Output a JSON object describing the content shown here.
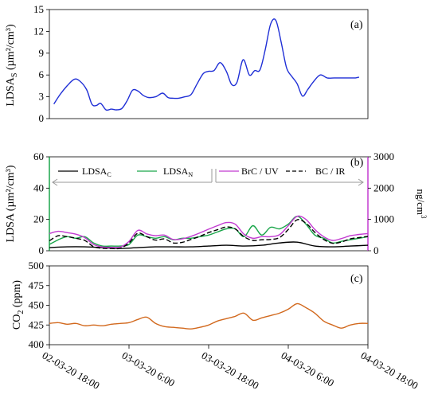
{
  "chart_data": [
    {
      "type": "line",
      "panel_label": "(a)",
      "ylabel_main": "LDSA",
      "ylabel_sub": "S",
      "ylabel_unit": " (µm²/cm³)",
      "ylim": [
        0,
        15
      ],
      "yticks": [
        "0",
        "3",
        "6",
        "9",
        "12",
        "15"
      ],
      "ytick_values": [
        0,
        3,
        6,
        9,
        12,
        15
      ],
      "x_range": [
        0,
        36
      ],
      "series": [
        {
          "color": "#1f2fd6",
          "x": [
            0.5,
            1.2,
            2.0,
            2.8,
            3.4,
            4.2,
            4.8,
            5.3,
            5.8,
            6.4,
            7.0,
            7.6,
            8.2,
            8.8,
            9.4,
            10.0,
            10.6,
            11.2,
            12.0,
            12.8,
            13.4,
            14.0,
            14.6,
            15.3,
            16.0,
            16.7,
            17.4,
            18.0,
            18.6,
            19.3,
            20.0,
            20.6,
            21.2,
            21.9,
            22.6,
            23.2,
            23.8,
            24.4,
            25.0,
            25.6,
            26.2,
            26.8,
            27.4,
            28.0,
            28.6,
            29.2,
            29.8,
            30.6,
            31.4,
            32.2,
            33.0,
            33.8,
            34.6,
            35.0
          ],
          "y": [
            2.0,
            3.3,
            4.5,
            5.4,
            5.2,
            4.0,
            2.0,
            1.8,
            2.1,
            1.2,
            1.3,
            1.2,
            1.4,
            2.5,
            3.9,
            3.8,
            3.2,
            2.9,
            3.0,
            3.5,
            2.9,
            2.8,
            2.8,
            3.0,
            3.3,
            4.8,
            6.2,
            6.5,
            6.6,
            7.7,
            6.5,
            4.7,
            5.0,
            8.1,
            6.0,
            6.6,
            6.7,
            9.5,
            13.0,
            13.5,
            10.5,
            7.0,
            5.8,
            4.8,
            3.1,
            4.0,
            5.0,
            6.0,
            5.6,
            5.6,
            5.6,
            5.6,
            5.6,
            5.7
          ]
        }
      ]
    },
    {
      "type": "line",
      "panel_label": "(b)",
      "ylabel_main": "LDSA",
      "ylabel_unit": " (µm²/cm³)",
      "ylim": [
        0,
        60
      ],
      "yticks": [
        "0",
        "20",
        "40",
        "60"
      ],
      "ytick_values": [
        0,
        20,
        40,
        60
      ],
      "y2lim": [
        0,
        3000
      ],
      "y2ticks": [
        "0",
        "1000",
        "2000",
        "3000"
      ],
      "y2tick_values": [
        0,
        1000,
        2000,
        3000
      ],
      "y2label_main": "ng/cm",
      "y2label_sup": "3",
      "x_range": [
        0,
        36
      ],
      "legend": [
        {
          "main": "LDSA",
          "sub": "C",
          "color": "#000000",
          "style": "solid"
        },
        {
          "main": "LDSA",
          "sub": "N",
          "color": "#1aa64a",
          "style": "solid"
        },
        {
          "main": "BrC / UV",
          "sub": "",
          "color": "#c23ad1",
          "style": "solid"
        },
        {
          "main": "BC / IR",
          "sub": "",
          "color": "#000000",
          "style": "dashed"
        }
      ],
      "series": [
        {
          "name": "LDSA_C",
          "axis": "left",
          "color": "#000000",
          "style": "solid",
          "x": [
            0,
            2,
            4,
            6,
            8,
            10,
            12,
            14,
            16,
            18,
            20,
            22,
            24,
            26,
            28,
            30,
            32,
            34,
            36
          ],
          "y": [
            2.0,
            2.5,
            2.5,
            2.0,
            1.5,
            2.0,
            2.5,
            2.5,
            2.5,
            3.0,
            3.5,
            3.0,
            3.5,
            5.0,
            5.5,
            3.0,
            2.5,
            3.0,
            3.5
          ]
        },
        {
          "name": "LDSA_N",
          "axis": "left",
          "color": "#1aa64a",
          "style": "solid",
          "x": [
            0,
            1,
            2,
            3,
            4,
            5,
            6,
            7,
            8,
            9,
            10,
            11,
            12,
            13,
            14,
            15,
            16,
            17,
            18,
            19,
            20,
            21,
            22,
            23,
            24,
            25,
            26,
            27,
            28,
            29,
            30,
            31,
            32,
            33,
            34,
            35,
            36
          ],
          "y": [
            4,
            7,
            9,
            8,
            9,
            5,
            3,
            3,
            3,
            4,
            10,
            9,
            8,
            9,
            7,
            8,
            8,
            9,
            10,
            12,
            14,
            14,
            9,
            16,
            10,
            15,
            14,
            17,
            22,
            17,
            10,
            8,
            5,
            6,
            7,
            8,
            9
          ]
        },
        {
          "name": "BrC / UV",
          "axis": "right",
          "color": "#c23ad1",
          "style": "solid",
          "x": [
            0,
            1,
            2,
            3,
            4,
            5,
            6,
            7,
            8,
            9,
            10,
            11,
            12,
            13,
            14,
            15,
            16,
            17,
            18,
            19,
            20,
            21,
            22,
            23,
            24,
            25,
            26,
            27,
            28,
            29,
            30,
            31,
            32,
            33,
            34,
            35,
            36
          ],
          "y": [
            550,
            620,
            580,
            530,
            420,
            200,
            120,
            110,
            120,
            300,
            650,
            540,
            480,
            500,
            360,
            380,
            460,
            570,
            690,
            800,
            900,
            850,
            530,
            400,
            450,
            450,
            510,
            800,
            1100,
            1000,
            680,
            450,
            330,
            390,
            480,
            520,
            550
          ]
        },
        {
          "name": "BC / IR",
          "axis": "right",
          "color": "#000000",
          "style": "dashed",
          "x": [
            0,
            1,
            2,
            3,
            4,
            5,
            6,
            7,
            8,
            9,
            10,
            11,
            12,
            13,
            14,
            15,
            16,
            17,
            18,
            19,
            20,
            21,
            22,
            23,
            24,
            25,
            26,
            27,
            28,
            29,
            30,
            31,
            32,
            33,
            34,
            35,
            36
          ],
          "y": [
            320,
            480,
            450,
            400,
            330,
            130,
            80,
            70,
            80,
            250,
            560,
            450,
            340,
            380,
            250,
            270,
            360,
            460,
            580,
            670,
            760,
            700,
            450,
            330,
            350,
            360,
            420,
            680,
            990,
            880,
            590,
            360,
            240,
            280,
            380,
            420,
            460
          ]
        }
      ]
    },
    {
      "type": "line",
      "panel_label": "(c)",
      "ylabel_main": "CO",
      "ylabel_sub": "2",
      "ylabel_unit": " (ppm)",
      "ylim": [
        400,
        500
      ],
      "yticks": [
        "400",
        "425",
        "450",
        "475",
        "500"
      ],
      "ytick_values": [
        400,
        425,
        450,
        475,
        500
      ],
      "x_range": [
        0,
        36
      ],
      "xticks": [
        "02-03-20 18:00",
        "03-03-20 6:00",
        "03-03-20 18:00",
        "04-03-20 6:00",
        "04-03-20 18:00"
      ],
      "xtick_values": [
        0,
        9,
        18,
        27,
        36
      ],
      "series": [
        {
          "color": "#d2691e",
          "x": [
            0,
            1,
            2,
            3,
            4,
            5,
            6,
            7,
            8,
            9,
            10,
            11,
            12,
            13,
            14,
            15,
            16,
            17,
            18,
            19,
            20,
            21,
            22,
            23,
            24,
            25,
            26,
            27,
            28,
            29,
            30,
            31,
            32,
            33,
            34,
            35,
            36
          ],
          "y": [
            427,
            428,
            426,
            427,
            424,
            425,
            424,
            426,
            427,
            428,
            432,
            435,
            427,
            423,
            422,
            421,
            420,
            422,
            425,
            430,
            433,
            436,
            440,
            431,
            434,
            437,
            440,
            445,
            452,
            447,
            440,
            430,
            425,
            421,
            425,
            427,
            427
          ]
        }
      ]
    }
  ]
}
